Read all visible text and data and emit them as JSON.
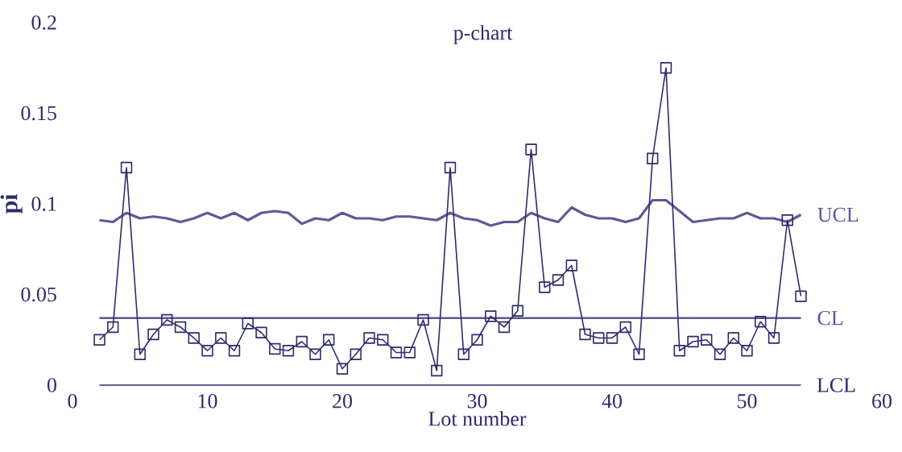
{
  "chart_data": {
    "type": "line",
    "title": "p-chart",
    "xlabel": "Lot number",
    "ylabel": "pi",
    "xlim": [
      0,
      60
    ],
    "ylim": [
      0,
      0.2
    ],
    "xticks": [
      0,
      10,
      20,
      30,
      40,
      50,
      60
    ],
    "yticks": [
      0,
      0.05,
      0.1,
      0.15,
      0.2
    ],
    "grid": false,
    "series": [
      {
        "name": "UCL",
        "color": "#5e5a94",
        "marker": "none",
        "x": [
          2,
          3,
          4,
          5,
          6,
          7,
          8,
          9,
          10,
          11,
          12,
          13,
          14,
          15,
          16,
          17,
          18,
          19,
          20,
          21,
          22,
          23,
          24,
          25,
          26,
          27,
          28,
          29,
          30,
          31,
          32,
          33,
          34,
          35,
          36,
          37,
          38,
          39,
          40,
          41,
          42,
          43,
          44,
          45,
          46,
          47,
          48,
          49,
          50,
          51,
          52,
          53,
          54
        ],
        "values": [
          0.091,
          0.09,
          0.095,
          0.092,
          0.093,
          0.092,
          0.09,
          0.092,
          0.095,
          0.092,
          0.095,
          0.091,
          0.095,
          0.096,
          0.095,
          0.089,
          0.092,
          0.091,
          0.095,
          0.092,
          0.092,
          0.091,
          0.093,
          0.093,
          0.092,
          0.091,
          0.095,
          0.092,
          0.091,
          0.088,
          0.09,
          0.09,
          0.095,
          0.092,
          0.09,
          0.098,
          0.094,
          0.092,
          0.092,
          0.09,
          0.092,
          0.102,
          0.102,
          0.096,
          0.09,
          0.091,
          0.092,
          0.092,
          0.095,
          0.092,
          0.092,
          0.09,
          0.094
        ]
      },
      {
        "name": "CL",
        "color": "#5a5894",
        "marker": "none",
        "x": [
          2,
          54
        ],
        "values": [
          0.037,
          0.037
        ]
      },
      {
        "name": "LCL",
        "color": "#2e2b6b",
        "marker": "none",
        "x": [
          2,
          54
        ],
        "values": [
          0,
          0
        ]
      },
      {
        "color": "#2e2b6b",
        "marker": "square",
        "x": [
          2,
          3,
          4,
          5,
          6,
          7,
          8,
          9,
          10,
          11,
          12,
          13,
          14,
          15,
          16,
          17,
          18,
          19,
          20,
          21,
          22,
          23,
          24,
          25,
          26,
          27,
          28,
          29,
          30,
          31,
          32,
          33,
          34,
          35,
          36,
          37,
          38,
          39,
          40,
          41,
          42,
          43,
          44,
          45,
          46,
          47,
          48,
          49,
          50,
          51,
          52,
          53,
          54
        ],
        "values": [
          0.025,
          0.032,
          0.12,
          0.017,
          0.028,
          0.036,
          0.032,
          0.026,
          0.019,
          0.026,
          0.019,
          0.034,
          0.029,
          0.02,
          0.019,
          0.024,
          0.017,
          0.025,
          0.009,
          0.017,
          0.026,
          0.025,
          0.018,
          0.018,
          0.036,
          0.008,
          0.12,
          0.017,
          0.025,
          0.038,
          0.032,
          0.041,
          0.13,
          0.054,
          0.058,
          0.066,
          0.028,
          0.026,
          0.026,
          0.032,
          0.017,
          0.125,
          0.175,
          0.019,
          0.024,
          0.025,
          0.017,
          0.026,
          0.019,
          0.035,
          0.026,
          0.091,
          0.049
        ]
      }
    ]
  }
}
